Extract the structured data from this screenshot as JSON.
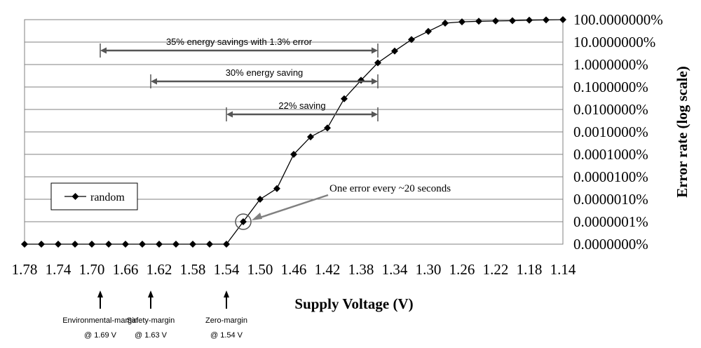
{
  "chart_data": {
    "type": "line",
    "xlabel": "Supply Voltage (V)",
    "ylabel": "Error rate (log scale)",
    "x_ticks": [
      "1.78",
      "1.74",
      "1.70",
      "1.66",
      "1.62",
      "1.58",
      "1.54",
      "1.50",
      "1.46",
      "1.42",
      "1.38",
      "1.34",
      "1.30",
      "1.26",
      "1.22",
      "1.18",
      "1.14"
    ],
    "xlim": [
      1.78,
      1.14
    ],
    "x_reversed": true,
    "y_scale": "log",
    "y_ticks": [
      "0.0000000%",
      "0.0000001%",
      "0.0000010%",
      "0.0000100%",
      "0.0001000%",
      "0.0010000%",
      "0.0100000%",
      "0.1000000%",
      "1.0000000%",
      "10.0000000%",
      "100.0000000%"
    ],
    "series": [
      {
        "name": "random",
        "color": "#000000",
        "marker": "diamond",
        "x": [
          1.78,
          1.76,
          1.74,
          1.72,
          1.7,
          1.68,
          1.66,
          1.64,
          1.62,
          1.6,
          1.58,
          1.56,
          1.54,
          1.52,
          1.5,
          1.48,
          1.46,
          1.44,
          1.42,
          1.4,
          1.38,
          1.36,
          1.34,
          1.32,
          1.3,
          1.28,
          1.26,
          1.24,
          1.22,
          1.2,
          1.18,
          1.16,
          1.14
        ],
        "y": [
          "0%",
          "0%",
          "0%",
          "0%",
          "0%",
          "0%",
          "0%",
          "0%",
          "0%",
          "0%",
          "0%",
          "0%",
          "0%",
          "0.0000001%",
          "0.000001%",
          "0.000003%",
          "0.0001%",
          "0.0006%",
          "0.0015%",
          "0.03%",
          "0.2%",
          "1.2%",
          "4%",
          "13%",
          "30%",
          "70%",
          "80%",
          "85%",
          "87%",
          "90%",
          "95%",
          "97%",
          "100%"
        ]
      }
    ],
    "legend": {
      "position": "left-middle",
      "entries": [
        "random"
      ]
    },
    "annotations": {
      "ranges": [
        {
          "label": "35% energy savings with 1.3% error",
          "from": 1.69,
          "to": 1.36
        },
        {
          "label": "30% energy saving",
          "from": 1.63,
          "to": 1.36
        },
        {
          "label": "22% saving",
          "from": 1.54,
          "to": 1.36
        }
      ],
      "callout": {
        "label": "One error every ~20 seconds",
        "x": 1.52
      },
      "margins": [
        {
          "name": "Environmental-margin",
          "value": "@ 1.69 V",
          "x": 1.69
        },
        {
          "name": "Safety-margin",
          "value": "@ 1.63 V",
          "x": 1.63
        },
        {
          "name": "Zero-margin",
          "value": "@ 1.54 V",
          "x": 1.54
        }
      ]
    }
  }
}
